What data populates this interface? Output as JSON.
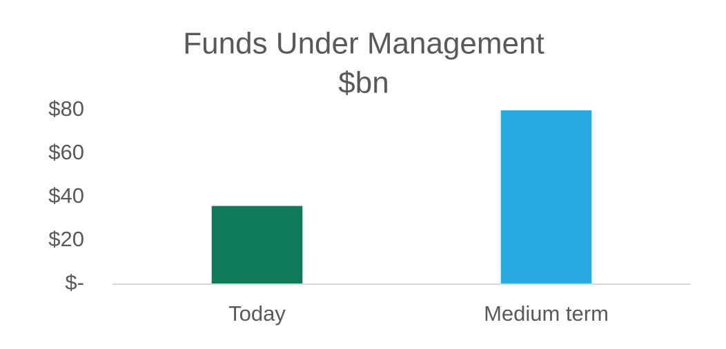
{
  "chart_data": {
    "type": "bar",
    "title": "Funds Under Management",
    "subtitle": "$bn",
    "categories": [
      "Today",
      "Medium term"
    ],
    "values": [
      36,
      80
    ],
    "colors": [
      "#0e7a5a",
      "#29abe2"
    ],
    "ylim": [
      0,
      80
    ],
    "yticks": [
      {
        "value": 0,
        "label": "$-"
      },
      {
        "value": 20,
        "label": "$20"
      },
      {
        "value": 40,
        "label": "$40"
      },
      {
        "value": 60,
        "label": "$60"
      },
      {
        "value": 80,
        "label": "$80"
      }
    ],
    "grid": false
  }
}
